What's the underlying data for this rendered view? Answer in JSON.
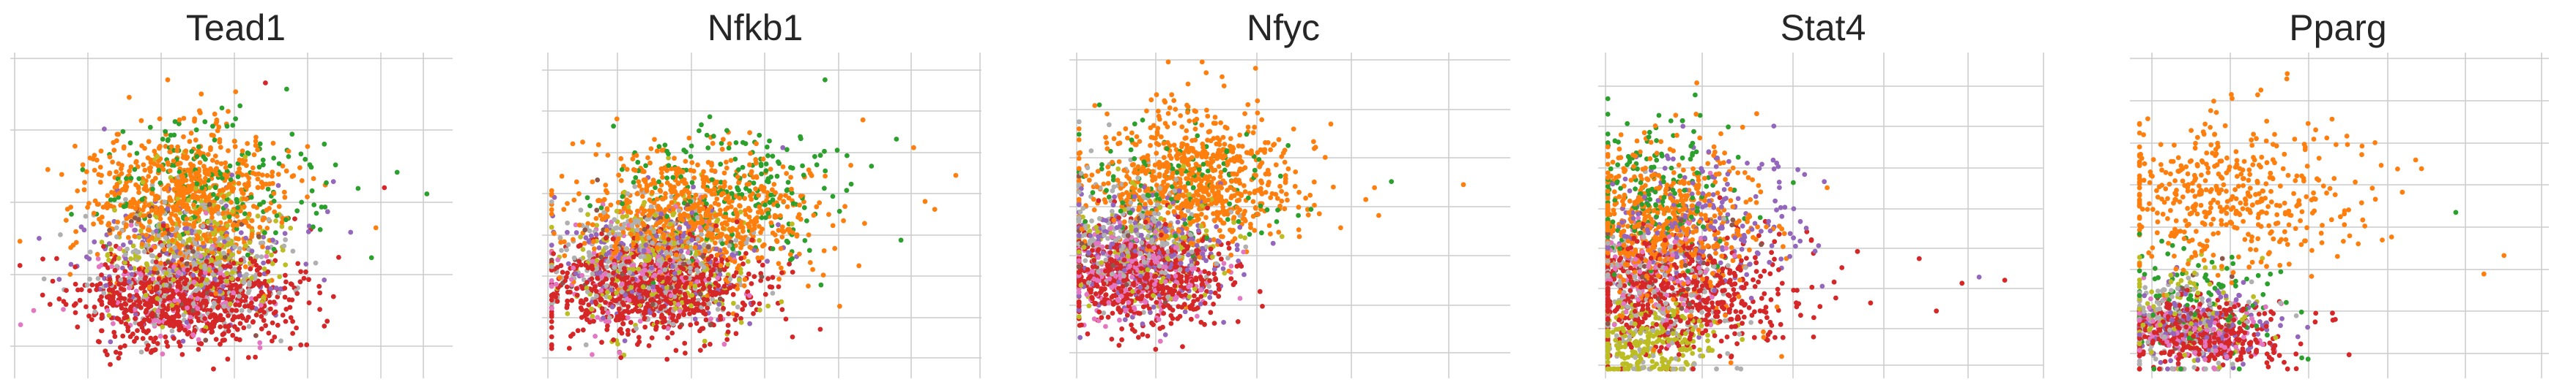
{
  "chart_data": [
    {
      "type": "scatter",
      "title": "Tead1",
      "xlabel": "",
      "ylabel": "",
      "xlim": [
        0,
        10
      ],
      "ylim": [
        0,
        10
      ],
      "grid": true,
      "n_points": 2600,
      "seed": 11,
      "legend": "none",
      "series": [
        {
          "color": "#d62728",
          "weight": 0.3,
          "cx": 3.9,
          "cy": 2.3,
          "sx": 1.25,
          "sy": 0.75
        },
        {
          "color": "#ff7f0e",
          "weight": 0.28,
          "cx": 3.9,
          "cy": 5.6,
          "sx": 1.2,
          "sy": 1.15
        },
        {
          "color": "#b0b0b0",
          "weight": 0.12,
          "cx": 4.0,
          "cy": 3.3,
          "sx": 1.05,
          "sy": 1.0
        },
        {
          "color": "#bcbd22",
          "weight": 0.1,
          "cx": 4.2,
          "cy": 3.8,
          "sx": 1.1,
          "sy": 1.1
        },
        {
          "color": "#2ca02c",
          "weight": 0.07,
          "cx": 4.6,
          "cy": 6.2,
          "sx": 1.3,
          "sy": 1.1
        },
        {
          "color": "#9467bd",
          "weight": 0.06,
          "cx": 3.8,
          "cy": 3.6,
          "sx": 1.3,
          "sy": 1.1
        },
        {
          "color": "#e377c2",
          "weight": 0.05,
          "cx": 3.6,
          "cy": 2.6,
          "sx": 1.2,
          "sy": 0.9
        },
        {
          "color": "#8c564b",
          "weight": 0.02,
          "cx": 3.9,
          "cy": 3.6,
          "sx": 1.0,
          "sy": 1.0
        }
      ],
      "highlight_points": [
        {
          "x": 9.6,
          "y": 5.7,
          "color": "#2ca02c"
        },
        {
          "x": 8.9,
          "y": 6.4,
          "color": "#2ca02c"
        },
        {
          "x": 8.6,
          "y": 5.9,
          "color": "#d62728"
        },
        {
          "x": 8.4,
          "y": 4.6,
          "color": "#ff7f0e"
        },
        {
          "x": 7.4,
          "y": 6.1,
          "color": "#9467bd"
        },
        {
          "x": 6.3,
          "y": 9.1,
          "color": "#2ca02c"
        },
        {
          "x": 5.8,
          "y": 9.3,
          "color": "#d62728"
        },
        {
          "x": 3.5,
          "y": 9.4,
          "color": "#ff7f0e"
        }
      ]
    },
    {
      "type": "scatter",
      "title": "Nfkb1",
      "xlabel": "",
      "ylabel": "",
      "xlim": [
        0,
        10
      ],
      "ylim": [
        0,
        10
      ],
      "grid": true,
      "n_points": 2600,
      "seed": 23,
      "legend": "none",
      "series": [
        {
          "color": "#d62728",
          "weight": 0.28,
          "cx": 2.3,
          "cy": 2.6,
          "sx": 1.2,
          "sy": 0.8
        },
        {
          "color": "#ff7f0e",
          "weight": 0.28,
          "cx": 3.4,
          "cy": 5.0,
          "sx": 1.45,
          "sy": 1.05
        },
        {
          "color": "#b0b0b0",
          "weight": 0.12,
          "cx": 2.4,
          "cy": 3.5,
          "sx": 1.05,
          "sy": 1.0
        },
        {
          "color": "#bcbd22",
          "weight": 0.09,
          "cx": 2.5,
          "cy": 3.6,
          "sx": 1.1,
          "sy": 1.0
        },
        {
          "color": "#2ca02c",
          "weight": 0.08,
          "cx": 4.2,
          "cy": 5.8,
          "sx": 1.4,
          "sy": 1.1
        },
        {
          "color": "#9467bd",
          "weight": 0.07,
          "cx": 2.6,
          "cy": 3.6,
          "sx": 1.2,
          "sy": 1.0
        },
        {
          "color": "#e377c2",
          "weight": 0.06,
          "cx": 2.1,
          "cy": 3.0,
          "sx": 1.0,
          "sy": 0.9
        },
        {
          "color": "#8c564b",
          "weight": 0.02,
          "cx": 2.5,
          "cy": 3.5,
          "sx": 1.0,
          "sy": 1.0
        }
      ],
      "highlight_points": [
        {
          "x": 9.6,
          "y": 6.3,
          "color": "#ff7f0e"
        },
        {
          "x": 9.1,
          "y": 5.2,
          "color": "#ff7f0e"
        },
        {
          "x": 8.6,
          "y": 7.2,
          "color": "#ff7f0e"
        },
        {
          "x": 8.3,
          "y": 4.2,
          "color": "#2ca02c"
        },
        {
          "x": 7.6,
          "y": 6.6,
          "color": "#2ca02c"
        },
        {
          "x": 7.4,
          "y": 8.1,
          "color": "#ff7f0e"
        },
        {
          "x": 6.5,
          "y": 9.4,
          "color": "#2ca02c"
        },
        {
          "x": 5.5,
          "y": 7.2,
          "color": "#9467bd"
        }
      ]
    },
    {
      "type": "scatter",
      "title": "Nfyc",
      "xlabel": "",
      "ylabel": "",
      "xlim": [
        0,
        10
      ],
      "ylim": [
        0,
        10
      ],
      "grid": true,
      "n_points": 2300,
      "seed": 37,
      "legend": "none",
      "series": [
        {
          "color": "#d62728",
          "weight": 0.24,
          "cx": 1.6,
          "cy": 3.0,
          "sx": 0.95,
          "sy": 0.8
        },
        {
          "color": "#ff7f0e",
          "weight": 0.32,
          "cx": 2.6,
          "cy": 6.2,
          "sx": 1.3,
          "sy": 1.15
        },
        {
          "color": "#e377c2",
          "weight": 0.1,
          "cx": 1.5,
          "cy": 3.1,
          "sx": 0.9,
          "sy": 0.8
        },
        {
          "color": "#9467bd",
          "weight": 0.1,
          "cx": 1.6,
          "cy": 3.7,
          "sx": 1.0,
          "sy": 1.0
        },
        {
          "color": "#b0b0b0",
          "weight": 0.1,
          "cx": 1.4,
          "cy": 4.3,
          "sx": 0.9,
          "sy": 1.1
        },
        {
          "color": "#bcbd22",
          "weight": 0.06,
          "cx": 1.7,
          "cy": 4.0,
          "sx": 1.0,
          "sy": 1.0
        },
        {
          "color": "#2ca02c",
          "weight": 0.06,
          "cx": 2.3,
          "cy": 5.8,
          "sx": 1.2,
          "sy": 1.1
        },
        {
          "color": "#8c564b",
          "weight": 0.02,
          "cx": 1.6,
          "cy": 4.0,
          "sx": 0.9,
          "sy": 1.0
        }
      ],
      "highlight_points": [
        {
          "x": 9.1,
          "y": 6.0,
          "color": "#ff7f0e"
        },
        {
          "x": 7.4,
          "y": 6.1,
          "color": "#2ca02c"
        },
        {
          "x": 7.1,
          "y": 5.0,
          "color": "#ff7f0e"
        },
        {
          "x": 7.0,
          "y": 5.9,
          "color": "#ff7f0e"
        },
        {
          "x": 6.2,
          "y": 4.6,
          "color": "#ff7f0e"
        },
        {
          "x": 5.5,
          "y": 5.2,
          "color": "#2ca02c"
        },
        {
          "x": 3.4,
          "y": 9.5,
          "color": "#ff7f0e"
        },
        {
          "x": 5.2,
          "y": 5.0,
          "color": "#2ca02c"
        }
      ]
    },
    {
      "type": "scatter",
      "title": "Stat4",
      "xlabel": "",
      "ylabel": "",
      "xlim": [
        0,
        10
      ],
      "ylim": [
        0,
        10
      ],
      "grid": true,
      "n_points": 2300,
      "seed": 53,
      "legend": "none",
      "series": [
        {
          "color": "#d62728",
          "weight": 0.26,
          "cx": 1.6,
          "cy": 2.5,
          "sx": 1.4,
          "sy": 0.95
        },
        {
          "color": "#ff7f0e",
          "weight": 0.26,
          "cx": 1.4,
          "cy": 4.6,
          "sx": 1.1,
          "sy": 1.35
        },
        {
          "color": "#bcbd22",
          "weight": 0.12,
          "cx": 0.9,
          "cy": 0.9,
          "sx": 0.8,
          "sy": 0.6
        },
        {
          "color": "#b0b0b0",
          "weight": 0.1,
          "cx": 1.0,
          "cy": 2.3,
          "sx": 0.9,
          "sy": 1.2
        },
        {
          "color": "#9467bd",
          "weight": 0.1,
          "cx": 2.3,
          "cy": 4.8,
          "sx": 1.2,
          "sy": 1.2
        },
        {
          "color": "#2ca02c",
          "weight": 0.08,
          "cx": 1.2,
          "cy": 5.6,
          "sx": 1.0,
          "sy": 1.3
        },
        {
          "color": "#e377c2",
          "weight": 0.06,
          "cx": 1.0,
          "cy": 3.0,
          "sx": 0.9,
          "sy": 1.0
        },
        {
          "color": "#8c564b",
          "weight": 0.02,
          "cx": 1.2,
          "cy": 3.5,
          "sx": 1.0,
          "sy": 1.1
        }
      ],
      "highlight_points": [
        {
          "x": 9.3,
          "y": 2.9,
          "color": "#d62728"
        },
        {
          "x": 8.3,
          "y": 2.8,
          "color": "#d62728"
        },
        {
          "x": 8.7,
          "y": 3.0,
          "color": "#9467bd"
        },
        {
          "x": 7.7,
          "y": 1.9,
          "color": "#d62728"
        },
        {
          "x": 7.3,
          "y": 3.6,
          "color": "#d62728"
        },
        {
          "x": 3.5,
          "y": 8.3,
          "color": "#ff7f0e"
        },
        {
          "x": 2.1,
          "y": 9.3,
          "color": "#ff7f0e"
        },
        {
          "x": 3.9,
          "y": 7.9,
          "color": "#9467bd"
        }
      ]
    },
    {
      "type": "scatter",
      "title": "Pparg",
      "xlabel": "",
      "ylabel": "",
      "xlim": [
        0,
        10
      ],
      "ylim": [
        0,
        10
      ],
      "grid": true,
      "n_points": 1500,
      "seed": 71,
      "legend": "none",
      "series": [
        {
          "color": "#d62728",
          "weight": 0.26,
          "cx": 1.5,
          "cy": 1.2,
          "sx": 1.1,
          "sy": 0.55
        },
        {
          "color": "#ff7f0e",
          "weight": 0.3,
          "cx": 2.4,
          "cy": 5.5,
          "sx": 1.6,
          "sy": 1.2
        },
        {
          "color": "#e377c2",
          "weight": 0.1,
          "cx": 1.3,
          "cy": 1.2,
          "sx": 0.9,
          "sy": 0.55
        },
        {
          "color": "#9467bd",
          "weight": 0.1,
          "cx": 1.6,
          "cy": 1.4,
          "sx": 1.0,
          "sy": 0.6
        },
        {
          "color": "#b0b0b0",
          "weight": 0.09,
          "cx": 1.0,
          "cy": 1.5,
          "sx": 0.8,
          "sy": 0.8
        },
        {
          "color": "#2ca02c",
          "weight": 0.07,
          "cx": 1.7,
          "cy": 2.2,
          "sx": 1.0,
          "sy": 0.9
        },
        {
          "color": "#bcbd22",
          "weight": 0.06,
          "cx": 1.2,
          "cy": 1.9,
          "sx": 0.9,
          "sy": 0.8
        },
        {
          "color": "#8c564b",
          "weight": 0.02,
          "cx": 1.4,
          "cy": 1.6,
          "sx": 0.9,
          "sy": 0.7
        }
      ],
      "highlight_points": [
        {
          "x": 9.1,
          "y": 3.7,
          "color": "#ff7f0e"
        },
        {
          "x": 8.6,
          "y": 3.1,
          "color": "#ff7f0e"
        },
        {
          "x": 7.9,
          "y": 5.1,
          "color": "#2ca02c"
        },
        {
          "x": 6.9,
          "y": 6.8,
          "color": "#ff7f0e"
        },
        {
          "x": 6.3,
          "y": 4.3,
          "color": "#ff7f0e"
        },
        {
          "x": 5.2,
          "y": 7.3,
          "color": "#ff7f0e"
        },
        {
          "x": 3.7,
          "y": 9.6,
          "color": "#ff7f0e"
        },
        {
          "x": 4.2,
          "y": 6.6,
          "color": "#ff7f0e"
        }
      ]
    }
  ]
}
